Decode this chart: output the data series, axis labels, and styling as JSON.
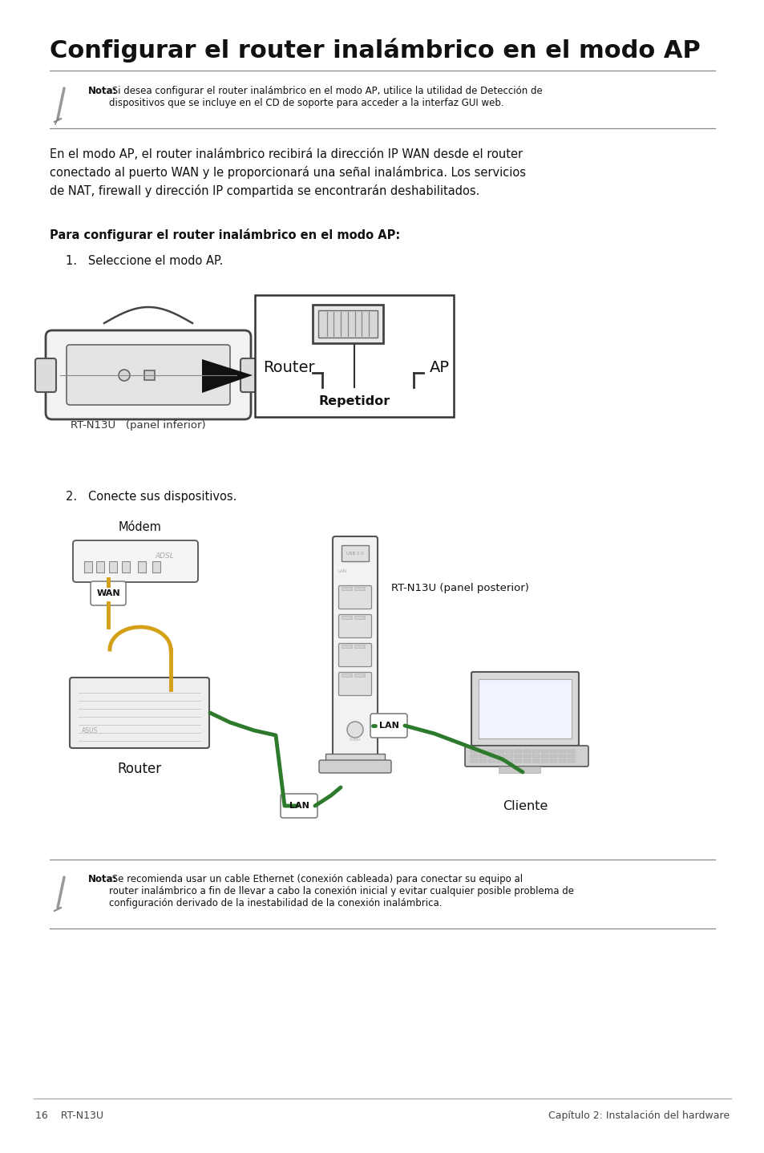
{
  "title": "Configurar el router inalámbrico en el modo AP",
  "bg_color": "#ffffff",
  "note1_bold": "Nota:",
  "note1_text": " Si desea configurar el router inalámbrico en el modo AP, utilice la utilidad de Detección de\ndispositivos que se incluye en el CD de soporte para acceder a la interfaz GUI web.",
  "body_text": "En el modo AP, el router inalámbrico recibirá la dirección IP WAN desde el router\nconectado al puerto WAN y le proporcionará una señal inalámbrica. Los servicios\nde NAT, firewall y dirección IP compartida se encontrarán deshabilitados.",
  "subtitle": "Para configurar el router inalámbrico en el modo AP:",
  "step1": "1.   Seleccione el modo AP.",
  "step2": "2.   Conecte sus dispositivos.",
  "label_rt": "RT-N13U   (panel inferior)",
  "label_router": "Router",
  "label_ap": "AP",
  "label_repetidor": "Repetidor",
  "label_modem": "Módem",
  "label_router2": "Router",
  "label_cliente": "Cliente",
  "label_wan": "WAN",
  "label_lan1": "LAN",
  "label_lan2": "LAN",
  "label_rtn13u": "RT-N13U (panel posterior)",
  "footer_left": "16    RT-N13U",
  "footer_right": "Capítulo 2: Instalación del hardware",
  "note2_bold": "Nota:",
  "note2_text": " Se recomienda usar un cable Ethernet (conexión cableada) para conectar su equipo al\nrouter inalámbrico a fin de llevar a cabo la conexión inicial y evitar cualquier posible problema de\nconfiguración derivado de la inestabilidad de la conexión inalámbrica.",
  "yellow": "#d4a017",
  "green": "#2d7a2d",
  "line_color": "#aaaaaa",
  "text_color": "#111111",
  "gray_device": "#e8e8e8",
  "dark_gray": "#444444"
}
